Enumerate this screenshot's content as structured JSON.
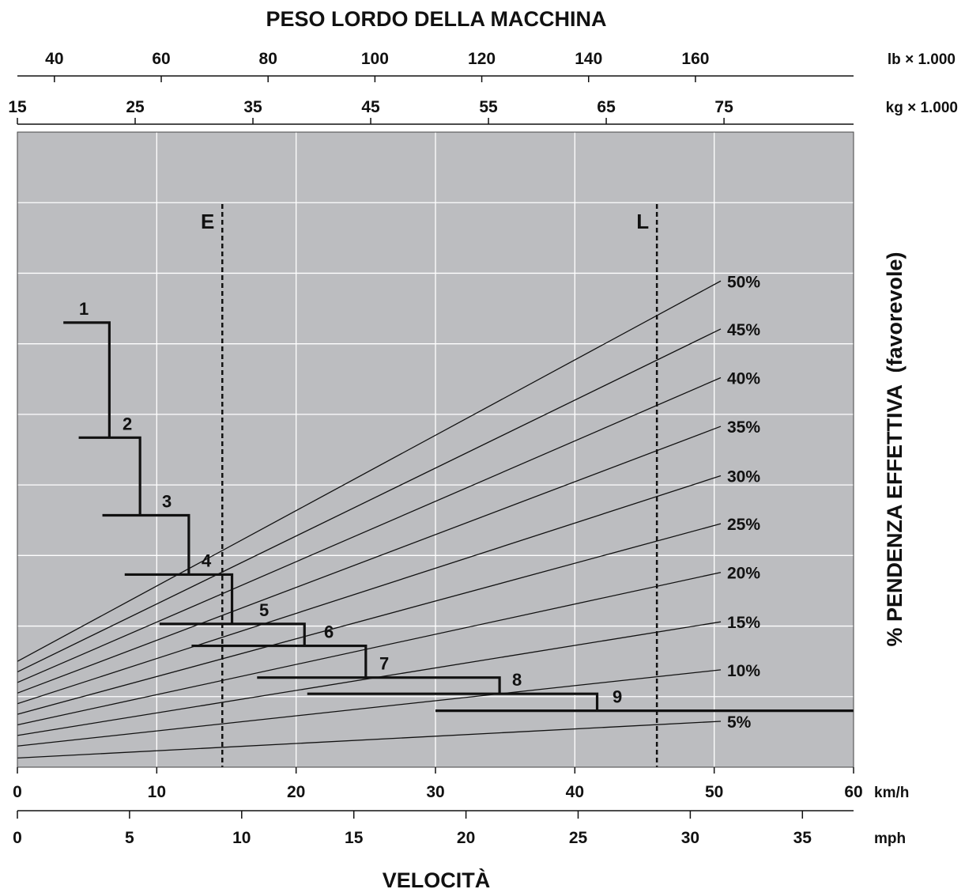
{
  "chart_data": {
    "type": "line",
    "title": "PESO LORDO DELLA MACCHINA",
    "xlabel": "VELOCITÀ",
    "ylabel_prefix": "% PENDENZA EFFETTIVA",
    "ylabel_suffix": "(favorevole)",
    "grid": true,
    "plot_bg": "#bcbdc0",
    "axes": {
      "speed_kmh": {
        "unit": "km/h",
        "range": [
          0,
          60
        ],
        "ticks": [
          0,
          10,
          20,
          30,
          40,
          50,
          60
        ]
      },
      "speed_mph": {
        "unit": "mph",
        "range": [
          0,
          37.28
        ],
        "ticks": [
          0,
          5,
          10,
          15,
          20,
          25,
          30,
          35
        ]
      },
      "weight_kg": {
        "unit": "kg × 1.000",
        "range": [
          15,
          86
        ],
        "ticks": [
          15,
          25,
          35,
          45,
          55,
          65,
          75
        ]
      },
      "weight_lb": {
        "unit": "lb × 1.000",
        "range": [
          33.07,
          189.6
        ],
        "ticks": [
          40,
          60,
          80,
          100,
          120,
          140,
          160
        ]
      },
      "rimpull": {
        "range": [
          0,
          9
        ],
        "gridlines": [
          1,
          2,
          3,
          4,
          5,
          6,
          7,
          8
        ]
      }
    },
    "reference_lines": [
      {
        "label": "E",
        "weight_kg": 32.4
      },
      {
        "label": "L",
        "weight_kg": 69.3
      }
    ],
    "grade_lines": [
      {
        "label": "5%",
        "weight_left_y": 0.13,
        "right_y": 0.65
      },
      {
        "label": "10%",
        "weight_left_y": 0.3,
        "right_y": 1.38
      },
      {
        "label": "15%",
        "weight_left_y": 0.45,
        "right_y": 2.06
      },
      {
        "label": "20%",
        "weight_left_y": 0.6,
        "right_y": 2.76
      },
      {
        "label": "25%",
        "weight_left_y": 0.75,
        "right_y": 3.45
      },
      {
        "label": "30%",
        "weight_left_y": 0.9,
        "right_y": 4.13
      },
      {
        "label": "35%",
        "weight_left_y": 1.05,
        "right_y": 4.83
      },
      {
        "label": "40%",
        "weight_left_y": 1.2,
        "right_y": 5.52
      },
      {
        "label": "45%",
        "weight_left_y": 1.35,
        "right_y": 6.21
      },
      {
        "label": "50%",
        "weight_left_y": 1.5,
        "right_y": 6.89
      }
    ],
    "gears": [
      {
        "label": "1",
        "y": 6.3,
        "x_start": 3.3,
        "x_end": 6.6,
        "drop_to": 4.67
      },
      {
        "label": "2",
        "y": 4.67,
        "x_start": 4.4,
        "x_end": 8.8,
        "drop_to": 3.57
      },
      {
        "label": "3",
        "y": 3.57,
        "x_start": 6.1,
        "x_end": 12.3,
        "drop_to": 2.73
      },
      {
        "label": "4",
        "y": 2.73,
        "x_start": 7.7,
        "x_end": 15.4,
        "drop_to": 2.03
      },
      {
        "label": "5",
        "y": 2.03,
        "x_start": 10.2,
        "x_end": 20.6,
        "drop_to": 1.72
      },
      {
        "label": "6",
        "y": 1.72,
        "x_start": 12.5,
        "x_end": 25.0,
        "drop_to": 1.27
      },
      {
        "label": "7",
        "y": 1.27,
        "x_start": 17.2,
        "x_end": 34.6,
        "drop_to": 1.04
      },
      {
        "label": "8",
        "y": 1.04,
        "x_start": 20.8,
        "x_end": 41.6,
        "drop_to": 0.8
      },
      {
        "label": "9",
        "y": 0.8,
        "x_start": 30.0,
        "x_end": 60.0,
        "drop_to": null
      }
    ]
  }
}
